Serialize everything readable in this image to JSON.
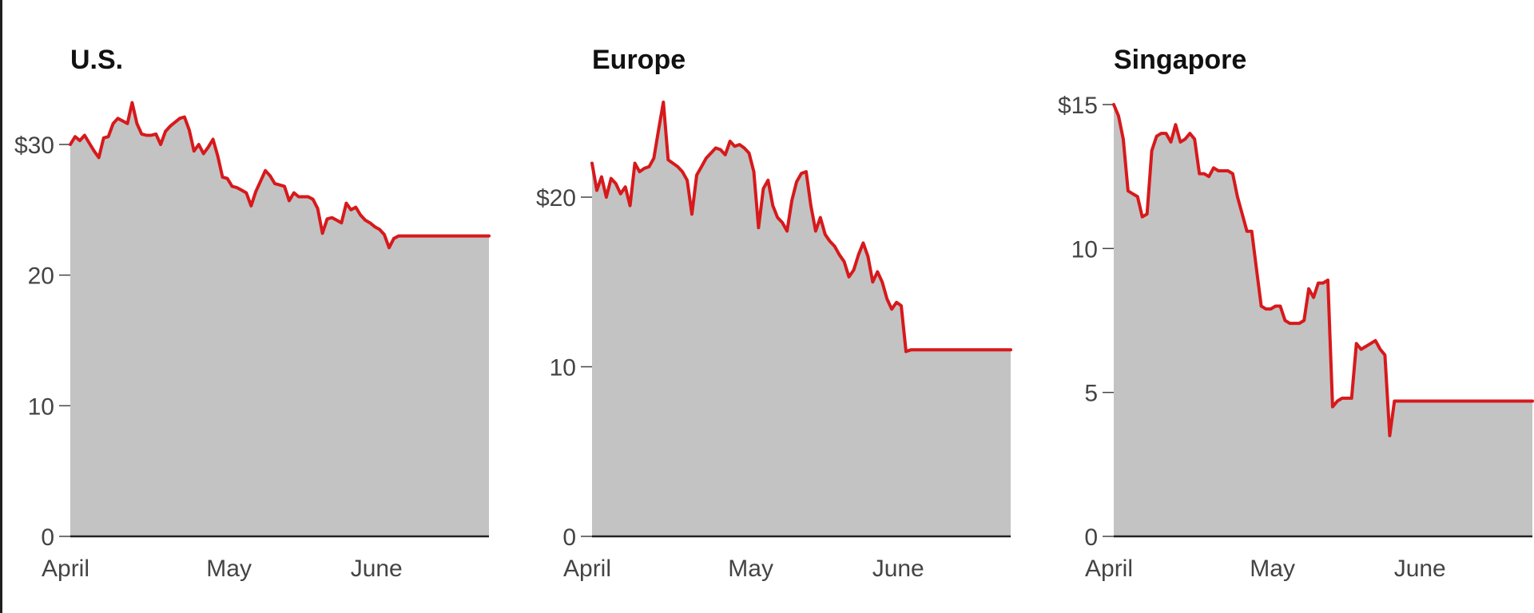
{
  "chart_data": [
    {
      "type": "area",
      "title": "U.S.",
      "xlabel": "",
      "ylabel": "",
      "ylim": [
        0,
        34
      ],
      "yticks": [
        0,
        10,
        20,
        30
      ],
      "ytick_labels": [
        "0",
        "10",
        "20",
        "$30"
      ],
      "xticks": [
        "April",
        "May",
        "June"
      ],
      "xtick_days": [
        0,
        30,
        61
      ],
      "x_extent_days": 88,
      "line_color": "#d7191c",
      "fill_color": "#c3c3c3",
      "series": [
        {
          "x": [
            0,
            1,
            2,
            3,
            4,
            5,
            6,
            7,
            8,
            9,
            10,
            11,
            12,
            13,
            14,
            15,
            16,
            17,
            18,
            19,
            20,
            21,
            22,
            23,
            24,
            25,
            26,
            27,
            28,
            29,
            30,
            31,
            32,
            33,
            34,
            35,
            36,
            37,
            38,
            39,
            40,
            41,
            42,
            43,
            44,
            45,
            46,
            47,
            48,
            49,
            50,
            51,
            52,
            53,
            54,
            55,
            56,
            57,
            58,
            59,
            60,
            61,
            62,
            63,
            64,
            65,
            66,
            67,
            68,
            69,
            70,
            71,
            72,
            73,
            74,
            75,
            76,
            77,
            78,
            79,
            80,
            81,
            82,
            83,
            84,
            85,
            86,
            87,
            88
          ],
          "y": [
            30.0,
            30.6,
            30.3,
            30.7,
            30.1,
            29.5,
            29.0,
            30.5,
            30.6,
            31.6,
            32.0,
            31.8,
            31.6,
            33.2,
            31.6,
            30.8,
            30.7,
            30.7,
            30.8,
            30.0,
            31.0,
            31.4,
            31.7,
            32.0,
            32.1,
            31.1,
            29.5,
            30.0,
            29.3,
            29.8,
            30.4,
            29.1,
            27.5,
            27.4,
            26.8,
            26.7,
            26.5,
            26.3,
            25.3,
            26.4,
            27.2,
            28.0,
            27.6,
            27.0,
            26.9,
            26.8,
            25.7,
            26.3,
            26.0,
            26.0,
            26.0,
            25.8,
            25.1,
            23.2,
            24.3,
            24.4,
            24.2,
            24.0,
            25.5,
            25.0,
            25.2,
            24.6,
            24.2,
            24.0,
            23.7,
            23.5,
            23.1,
            22.1,
            22.8,
            23.0,
            23.0,
            23.0,
            23.0,
            23.0,
            23.0,
            23.0,
            23.0,
            23.0,
            23.0,
            23.0,
            23.0,
            23.0,
            23.0,
            23.0,
            23.0,
            23.0,
            23.0,
            23.0,
            23.0
          ]
        }
      ]
    },
    {
      "type": "area",
      "title": "Europe",
      "xlabel": "",
      "ylabel": "",
      "ylim": [
        0,
        26
      ],
      "yticks": [
        0,
        10,
        20
      ],
      "ytick_labels": [
        "0",
        "10",
        "$20"
      ],
      "xticks": [
        "April",
        "May",
        "June"
      ],
      "xtick_days": [
        0,
        30,
        61
      ],
      "x_extent_days": 88,
      "line_color": "#d7191c",
      "fill_color": "#c3c3c3",
      "series": [
        {
          "x": [
            0,
            1,
            2,
            3,
            4,
            5,
            6,
            7,
            8,
            9,
            10,
            11,
            12,
            13,
            14,
            15,
            16,
            17,
            18,
            19,
            20,
            21,
            22,
            23,
            24,
            25,
            26,
            27,
            28,
            29,
            30,
            31,
            32,
            33,
            34,
            35,
            36,
            37,
            38,
            39,
            40,
            41,
            42,
            43,
            44,
            45,
            46,
            47,
            48,
            49,
            50,
            51,
            52,
            53,
            54,
            55,
            56,
            57,
            58,
            59,
            60,
            61,
            62,
            63,
            64,
            65,
            66,
            67,
            68,
            69,
            70,
            71,
            72,
            73,
            74,
            75,
            76,
            77,
            78,
            79,
            80,
            81,
            82,
            83,
            84,
            85,
            86,
            87,
            88
          ],
          "y": [
            22.0,
            20.4,
            21.2,
            20.0,
            21.1,
            20.8,
            20.2,
            20.6,
            19.5,
            22.0,
            21.5,
            21.7,
            21.8,
            22.3,
            24.0,
            25.6,
            22.2,
            22.0,
            21.8,
            21.5,
            21.0,
            19.0,
            21.3,
            21.8,
            22.3,
            22.6,
            22.9,
            22.8,
            22.5,
            23.3,
            23.0,
            23.1,
            22.9,
            22.6,
            21.5,
            18.2,
            20.5,
            21.0,
            19.5,
            18.8,
            18.5,
            18.0,
            19.8,
            20.9,
            21.4,
            21.5,
            19.5,
            18.0,
            18.8,
            17.8,
            17.4,
            17.1,
            16.6,
            16.2,
            15.3,
            15.7,
            16.6,
            17.3,
            16.5,
            15.0,
            15.6,
            15.0,
            14.0,
            13.4,
            13.8,
            13.6,
            10.9,
            11.0,
            11.0,
            11.0,
            11.0,
            11.0,
            11.0,
            11.0,
            11.0,
            11.0,
            11.0,
            11.0,
            11.0,
            11.0,
            11.0,
            11.0,
            11.0,
            11.0,
            11.0,
            11.0,
            11.0,
            11.0,
            11.0
          ]
        }
      ]
    },
    {
      "type": "area",
      "title": "Singapore",
      "xlabel": "",
      "ylabel": "",
      "ylim": [
        0,
        15
      ],
      "yticks": [
        0,
        5,
        10,
        15
      ],
      "ytick_labels": [
        "0",
        "5",
        "10",
        "$15"
      ],
      "xticks": [
        "April",
        "May",
        "June"
      ],
      "xtick_days": [
        0,
        30,
        61
      ],
      "x_extent_days": 88,
      "line_color": "#d7191c",
      "fill_color": "#c3c3c3",
      "series": [
        {
          "x": [
            0,
            1,
            2,
            3,
            4,
            5,
            6,
            7,
            8,
            9,
            10,
            11,
            12,
            13,
            14,
            15,
            16,
            17,
            18,
            19,
            20,
            21,
            22,
            23,
            24,
            25,
            26,
            27,
            28,
            29,
            30,
            31,
            32,
            33,
            34,
            35,
            36,
            37,
            38,
            39,
            40,
            41,
            42,
            43,
            44,
            45,
            46,
            47,
            48,
            49,
            50,
            51,
            52,
            53,
            54,
            55,
            56,
            57,
            58,
            59,
            60,
            61,
            62,
            63,
            64,
            65,
            66,
            67,
            68,
            69,
            70,
            71,
            72,
            73,
            74,
            75,
            76,
            77,
            78,
            79,
            80,
            81,
            82,
            83,
            84,
            85,
            86,
            87,
            88
          ],
          "y": [
            15.0,
            14.6,
            13.8,
            12.0,
            11.9,
            11.8,
            11.1,
            11.2,
            13.4,
            13.9,
            14.0,
            14.0,
            13.7,
            14.3,
            13.7,
            13.8,
            14.0,
            13.8,
            12.6,
            12.6,
            12.5,
            12.8,
            12.7,
            12.7,
            12.7,
            12.6,
            11.8,
            11.2,
            10.6,
            10.6,
            9.3,
            8.0,
            7.9,
            7.9,
            8.0,
            8.0,
            7.5,
            7.4,
            7.4,
            7.4,
            7.5,
            8.6,
            8.3,
            8.8,
            8.8,
            8.9,
            4.5,
            4.7,
            4.8,
            4.8,
            4.8,
            6.7,
            6.5,
            6.6,
            6.7,
            6.8,
            6.5,
            6.3,
            3.5,
            4.7,
            4.7,
            4.7,
            4.7,
            4.7,
            4.7,
            4.7,
            4.7,
            4.7,
            4.7,
            4.7,
            4.7,
            4.7,
            4.7,
            4.7,
            4.7,
            4.7,
            4.7,
            4.7,
            4.7,
            4.7,
            4.7,
            4.7,
            4.7,
            4.7,
            4.7,
            4.7,
            4.7,
            4.7,
            4.7
          ]
        }
      ]
    }
  ]
}
